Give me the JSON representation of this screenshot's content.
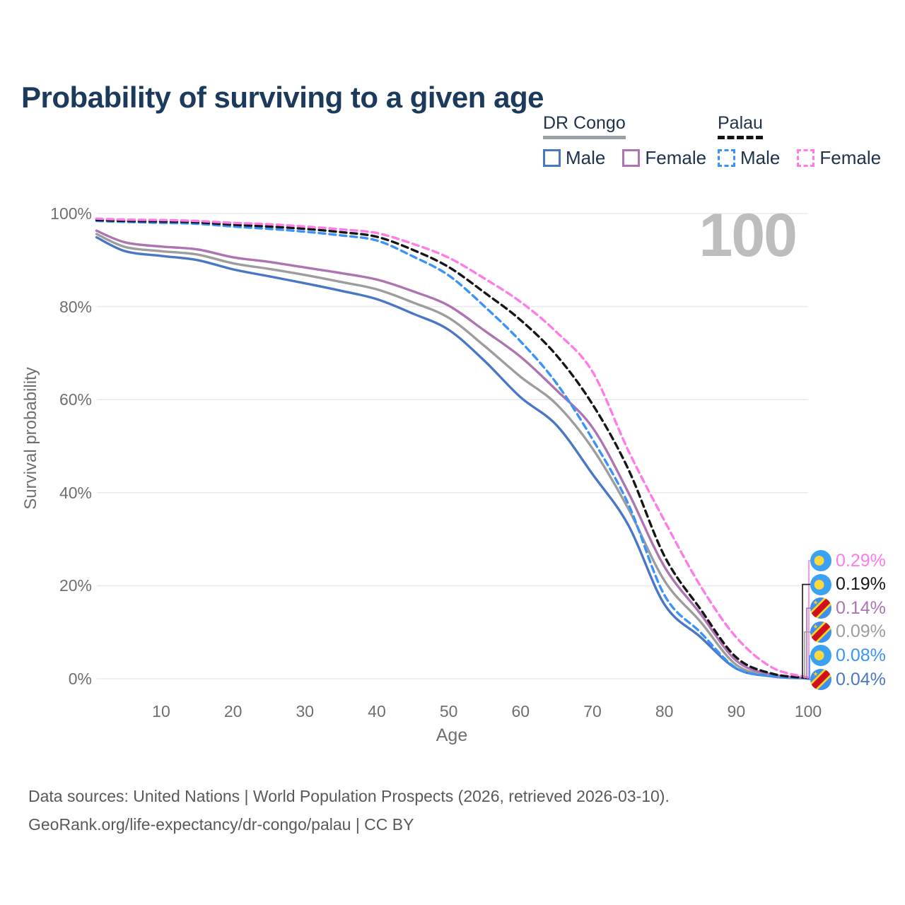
{
  "header": {
    "title": "Probability of surviving to a given age"
  },
  "legend": {
    "groups": [
      {
        "name": "DR Congo",
        "line_style": "solid",
        "underline_color": "#9aa0a6",
        "items": [
          {
            "label": "Male",
            "series": "drc_male"
          },
          {
            "label": "Female",
            "series": "drc_female"
          }
        ]
      },
      {
        "name": "Palau",
        "line_style": "dashed",
        "underline_color": "#141414",
        "items": [
          {
            "label": "Male",
            "series": "palau_male"
          },
          {
            "label": "Female",
            "series": "palau_female"
          }
        ]
      }
    ]
  },
  "chart_data": {
    "type": "line",
    "title": "Probability of surviving to a given age",
    "xlabel": "Age",
    "ylabel": "Survival probability",
    "xlim": [
      1,
      100
    ],
    "ylim": [
      0,
      100
    ],
    "grid": true,
    "legend_position": "top-right",
    "highlight_age_label": "100",
    "x_ticks": [
      10,
      20,
      30,
      40,
      50,
      60,
      70,
      80,
      90,
      100
    ],
    "y_ticks": [
      {
        "value": 0,
        "label": "0%"
      },
      {
        "value": 20,
        "label": "20%"
      },
      {
        "value": 40,
        "label": "40%"
      },
      {
        "value": 60,
        "label": "60%"
      },
      {
        "value": 80,
        "label": "80%"
      },
      {
        "value": 100,
        "label": "100%"
      }
    ],
    "ages": [
      1,
      5,
      10,
      15,
      20,
      25,
      30,
      35,
      40,
      45,
      50,
      55,
      60,
      65,
      70,
      75,
      80,
      85,
      90,
      95,
      100
    ],
    "series": [
      {
        "id": "drc_male",
        "name": "DR Congo Male",
        "color": "#4a77c5",
        "dash": false,
        "values": [
          94.9,
          91.9,
          90.9,
          90.0,
          88.0,
          86.5,
          85.0,
          83.4,
          81.6,
          78.5,
          75.0,
          68.3,
          60.5,
          54.5,
          44.0,
          33.0,
          16.0,
          9.0,
          2.2,
          0.5,
          0.04
        ]
      },
      {
        "id": "drc_total",
        "name": "DR Congo Both sexes",
        "color": "#9d9d9d",
        "dash": false,
        "values": [
          95.6,
          92.8,
          91.9,
          91.2,
          89.3,
          88.1,
          86.8,
          85.3,
          83.7,
          80.9,
          77.6,
          71.5,
          64.9,
          59.0,
          49.5,
          36.5,
          21.1,
          12.3,
          3.0,
          0.7,
          0.09
        ]
      },
      {
        "id": "drc_female",
        "name": "DR Congo Female",
        "color": "#ae74b2",
        "dash": false,
        "values": [
          96.3,
          93.8,
          92.9,
          92.3,
          90.6,
          89.6,
          88.4,
          87.2,
          85.8,
          83.3,
          80.2,
          74.8,
          69.2,
          62.0,
          54.0,
          40.0,
          24.1,
          14.0,
          3.9,
          0.9,
          0.14
        ]
      },
      {
        "id": "palau_male",
        "name": "Palau Male",
        "color": "#3b93f8",
        "dash": true,
        "values": [
          98.4,
          98.2,
          98.0,
          97.8,
          97.2,
          96.7,
          96.1,
          95.3,
          94.2,
          90.8,
          86.7,
          80.0,
          72.5,
          63.5,
          51.5,
          37.5,
          18.0,
          10.0,
          2.3,
          0.6,
          0.08
        ]
      },
      {
        "id": "palau_total",
        "name": "Palau Both sexes",
        "color": "#161616",
        "dash": true,
        "values": [
          98.6,
          98.4,
          98.3,
          98.1,
          97.6,
          97.2,
          96.7,
          96.0,
          95.0,
          92.2,
          88.5,
          83.0,
          77.1,
          69.5,
          59.0,
          45.0,
          26.4,
          15.0,
          4.6,
          1.1,
          0.19
        ]
      },
      {
        "id": "palau_female",
        "name": "Palau Female",
        "color": "#ff7ce6",
        "dash": true,
        "values": [
          98.9,
          98.7,
          98.6,
          98.4,
          98.0,
          97.7,
          97.2,
          96.6,
          95.8,
          93.5,
          90.5,
          86.0,
          81.0,
          74.5,
          66.0,
          49.0,
          34.0,
          20.0,
          8.9,
          2.4,
          0.29
        ]
      }
    ],
    "endpoint_labels": [
      {
        "series": "palau_female",
        "flag": "palau",
        "label": "0.29%"
      },
      {
        "series": "palau_total",
        "flag": "palau",
        "label": "0.19%"
      },
      {
        "series": "drc_female",
        "flag": "dr-congo",
        "label": "0.14%"
      },
      {
        "series": "drc_total",
        "flag": "dr-congo",
        "label": "0.09%"
      },
      {
        "series": "palau_male",
        "flag": "palau",
        "label": "0.08%"
      },
      {
        "series": "drc_male",
        "flag": "dr-congo",
        "label": "0.04%"
      }
    ]
  },
  "footer": {
    "line1": "Data sources: United Nations | World Population Prospects (2026, retrieved 2026-03-10).",
    "line2": "GeoRank.org/life-expectancy/dr-congo/palau | CC BY"
  }
}
